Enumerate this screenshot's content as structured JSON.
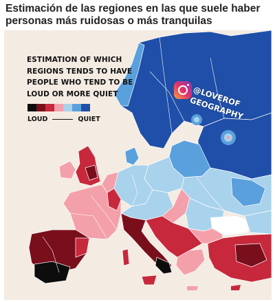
{
  "caption": "Estimación de las regiones en las que suele haber personas más ruidosas o más tranquilas",
  "map": {
    "title_lines": [
      "ESTIMATION OF WHICH",
      "REGIONS TENDS TO HAVE",
      "PEOPLE WHO TEND TO BE",
      "LOUD OR MORE QUIET"
    ],
    "legend": {
      "loud_label": "LOUD",
      "quiet_label": "QUIET",
      "scale_colors": [
        "#0d0d0d",
        "#7a0f1c",
        "#c8283c",
        "#f4a0aa",
        "#a9d2ec",
        "#5aa0dc",
        "#1f4fa8"
      ]
    },
    "watermark": {
      "icon": "instagram-icon",
      "handle_line1": "@LOVEROF",
      "handle_line2": "GEOGRAPHY"
    },
    "colors": {
      "background": "#f4ebe2",
      "sea": "#ffffff",
      "loudest": "#0d0d0d",
      "very_loud": "#7a0f1c",
      "loud": "#c8283c",
      "slightly_loud": "#f4a0aa",
      "slightly_quiet": "#a9d2ec",
      "quiet": "#5aa0dc",
      "very_quiet": "#1f4fa8",
      "border_line": "#ffffff"
    }
  }
}
